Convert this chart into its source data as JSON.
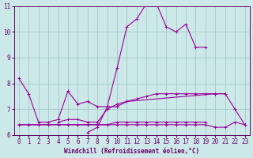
{
  "xlabel": "Windchill (Refroidissement éolien,°C)",
  "bg_color": "#cce8e8",
  "line_color": "#990099",
  "grid_color": "#aacccc",
  "axis_color": "#660066",
  "xlim": [
    -0.5,
    23.5
  ],
  "ylim": [
    6,
    11
  ],
  "xticks": [
    0,
    1,
    2,
    3,
    4,
    5,
    6,
    7,
    8,
    9,
    10,
    11,
    12,
    13,
    14,
    15,
    16,
    17,
    18,
    19,
    20,
    21,
    22,
    23
  ],
  "yticks": [
    6,
    7,
    8,
    9,
    10,
    11
  ],
  "lines": [
    {
      "x": [
        0,
        1,
        2,
        3,
        4,
        5,
        6,
        7,
        8,
        9,
        10,
        11,
        20,
        21
      ],
      "y": [
        8.2,
        7.6,
        6.5,
        6.5,
        6.6,
        7.7,
        7.2,
        7.3,
        7.1,
        7.1,
        7.1,
        7.3,
        7.6,
        7.6
      ]
    },
    {
      "x": [
        0,
        1,
        2,
        3,
        4,
        5,
        6,
        7,
        8,
        9,
        10,
        11,
        12,
        13,
        14,
        15,
        16,
        17,
        18,
        19
      ],
      "y": [
        6.4,
        6.4,
        6.4,
        6.4,
        6.4,
        6.4,
        6.4,
        6.4,
        6.4,
        6.4,
        6.5,
        6.5,
        6.5,
        6.5,
        6.5,
        6.5,
        6.5,
        6.5,
        6.5,
        6.5
      ]
    },
    {
      "x": [
        4,
        5,
        6,
        7,
        8,
        9,
        10,
        11,
        12,
        13,
        14,
        15,
        16,
        17,
        18,
        19,
        20,
        21,
        22,
        23
      ],
      "y": [
        6.5,
        6.6,
        6.6,
        6.5,
        6.5,
        7.0,
        7.2,
        7.3,
        7.4,
        7.5,
        7.6,
        7.6,
        7.6,
        7.6,
        7.6,
        7.6,
        7.6,
        7.6,
        7.0,
        6.4
      ]
    },
    {
      "x": [
        7,
        8,
        9,
        10,
        11,
        12,
        13,
        14,
        15,
        16,
        17,
        18,
        19
      ],
      "y": [
        6.1,
        6.3,
        7.1,
        8.6,
        10.2,
        10.5,
        11.1,
        11.1,
        10.2,
        10.0,
        10.3,
        9.4,
        9.4
      ]
    },
    {
      "x": [
        0,
        1,
        2,
        3,
        4,
        5,
        6,
        7,
        8,
        9,
        10,
        11,
        12,
        13,
        14,
        15,
        16,
        17,
        18,
        19,
        20,
        21,
        22,
        23
      ],
      "y": [
        6.4,
        6.4,
        6.4,
        6.4,
        6.4,
        6.4,
        6.4,
        6.4,
        6.4,
        6.4,
        6.4,
        6.4,
        6.4,
        6.4,
        6.4,
        6.4,
        6.4,
        6.4,
        6.4,
        6.4,
        6.3,
        6.3,
        6.5,
        6.4
      ]
    }
  ]
}
